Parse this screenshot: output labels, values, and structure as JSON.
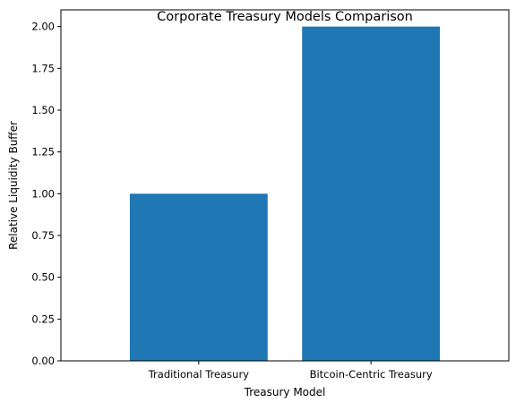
{
  "chart_data": {
    "type": "bar",
    "title": "Corporate Treasury Models Comparison",
    "xlabel": "Treasury Model",
    "ylabel": "Relative Liquidity Buffer",
    "categories": [
      "Traditional Treasury",
      "Bitcoin-Centric Treasury"
    ],
    "values": [
      1.0,
      2.0
    ],
    "ylim": [
      0,
      2.1
    ],
    "yticks": [
      "0.00",
      "0.25",
      "0.50",
      "0.75",
      "1.00",
      "1.25",
      "1.50",
      "1.75",
      "2.00"
    ],
    "grid": false,
    "legend": "none",
    "bar_color": "#1f77b4"
  }
}
